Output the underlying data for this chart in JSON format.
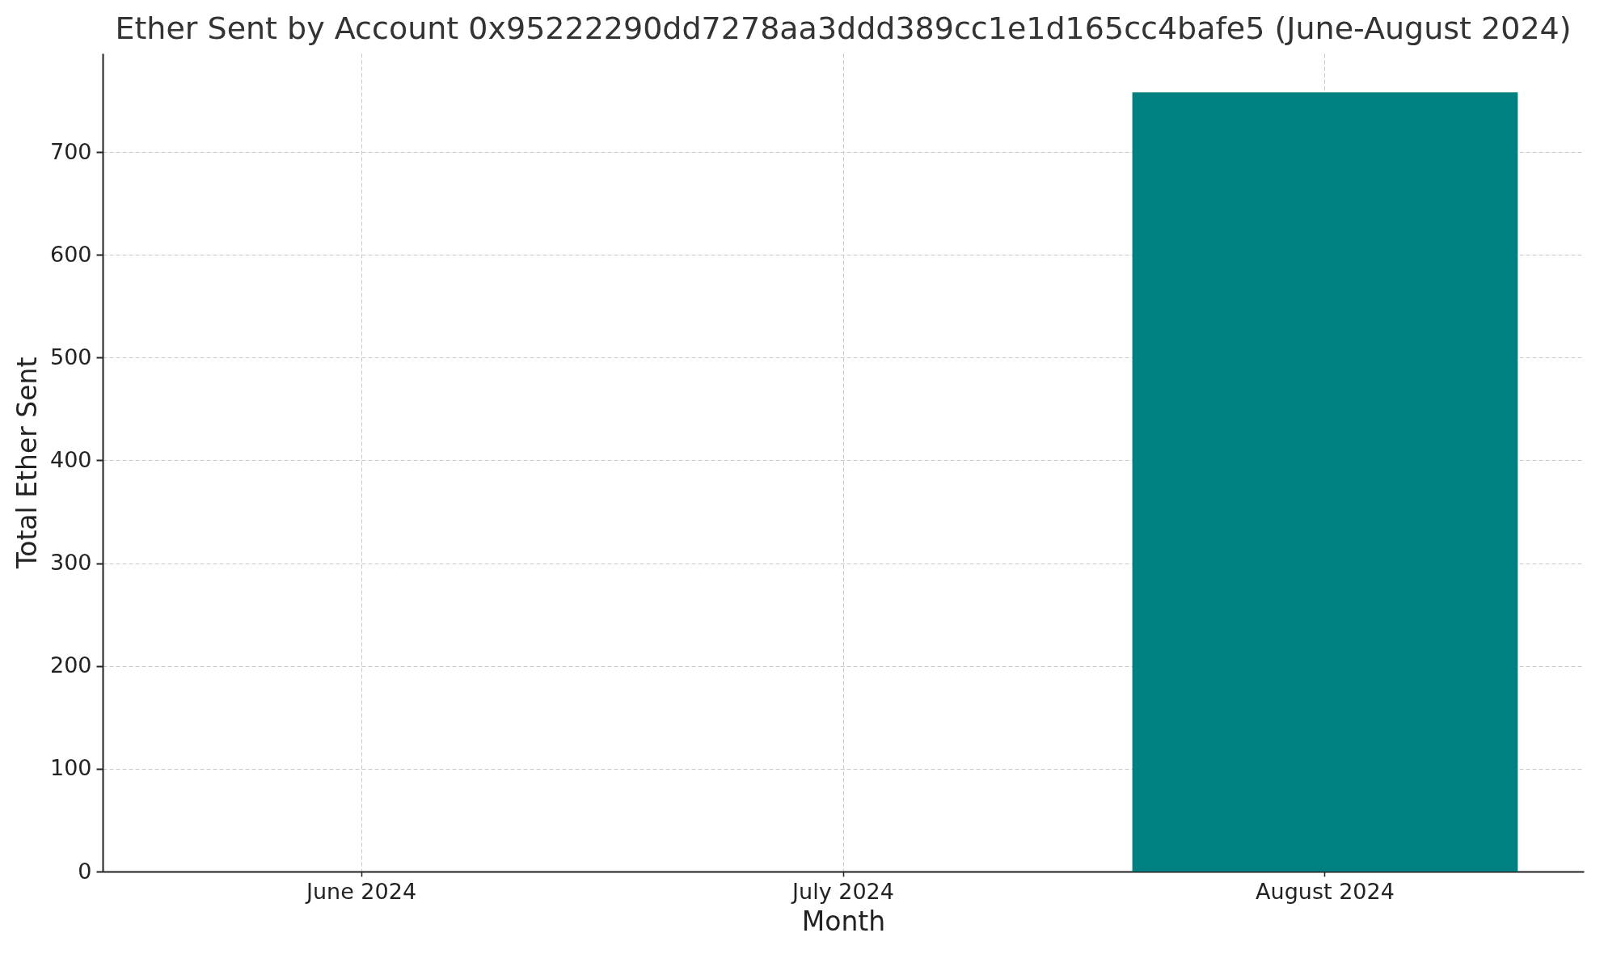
{
  "chart_data": {
    "type": "bar",
    "title": "Ether Sent by Account 0x95222290dd7278aa3ddd389cc1e1d165cc4bafe5 (June-August 2024)",
    "xlabel": "Month",
    "ylabel": "Total Ether Sent",
    "categories": [
      "June 2024",
      "July 2024",
      "August 2024"
    ],
    "values": [
      0,
      0,
      758
    ],
    "color": "#008080",
    "ylim": [
      0,
      796
    ],
    "yticks": [
      0,
      100,
      200,
      300,
      400,
      500,
      600,
      700
    ],
    "grid": true
  }
}
